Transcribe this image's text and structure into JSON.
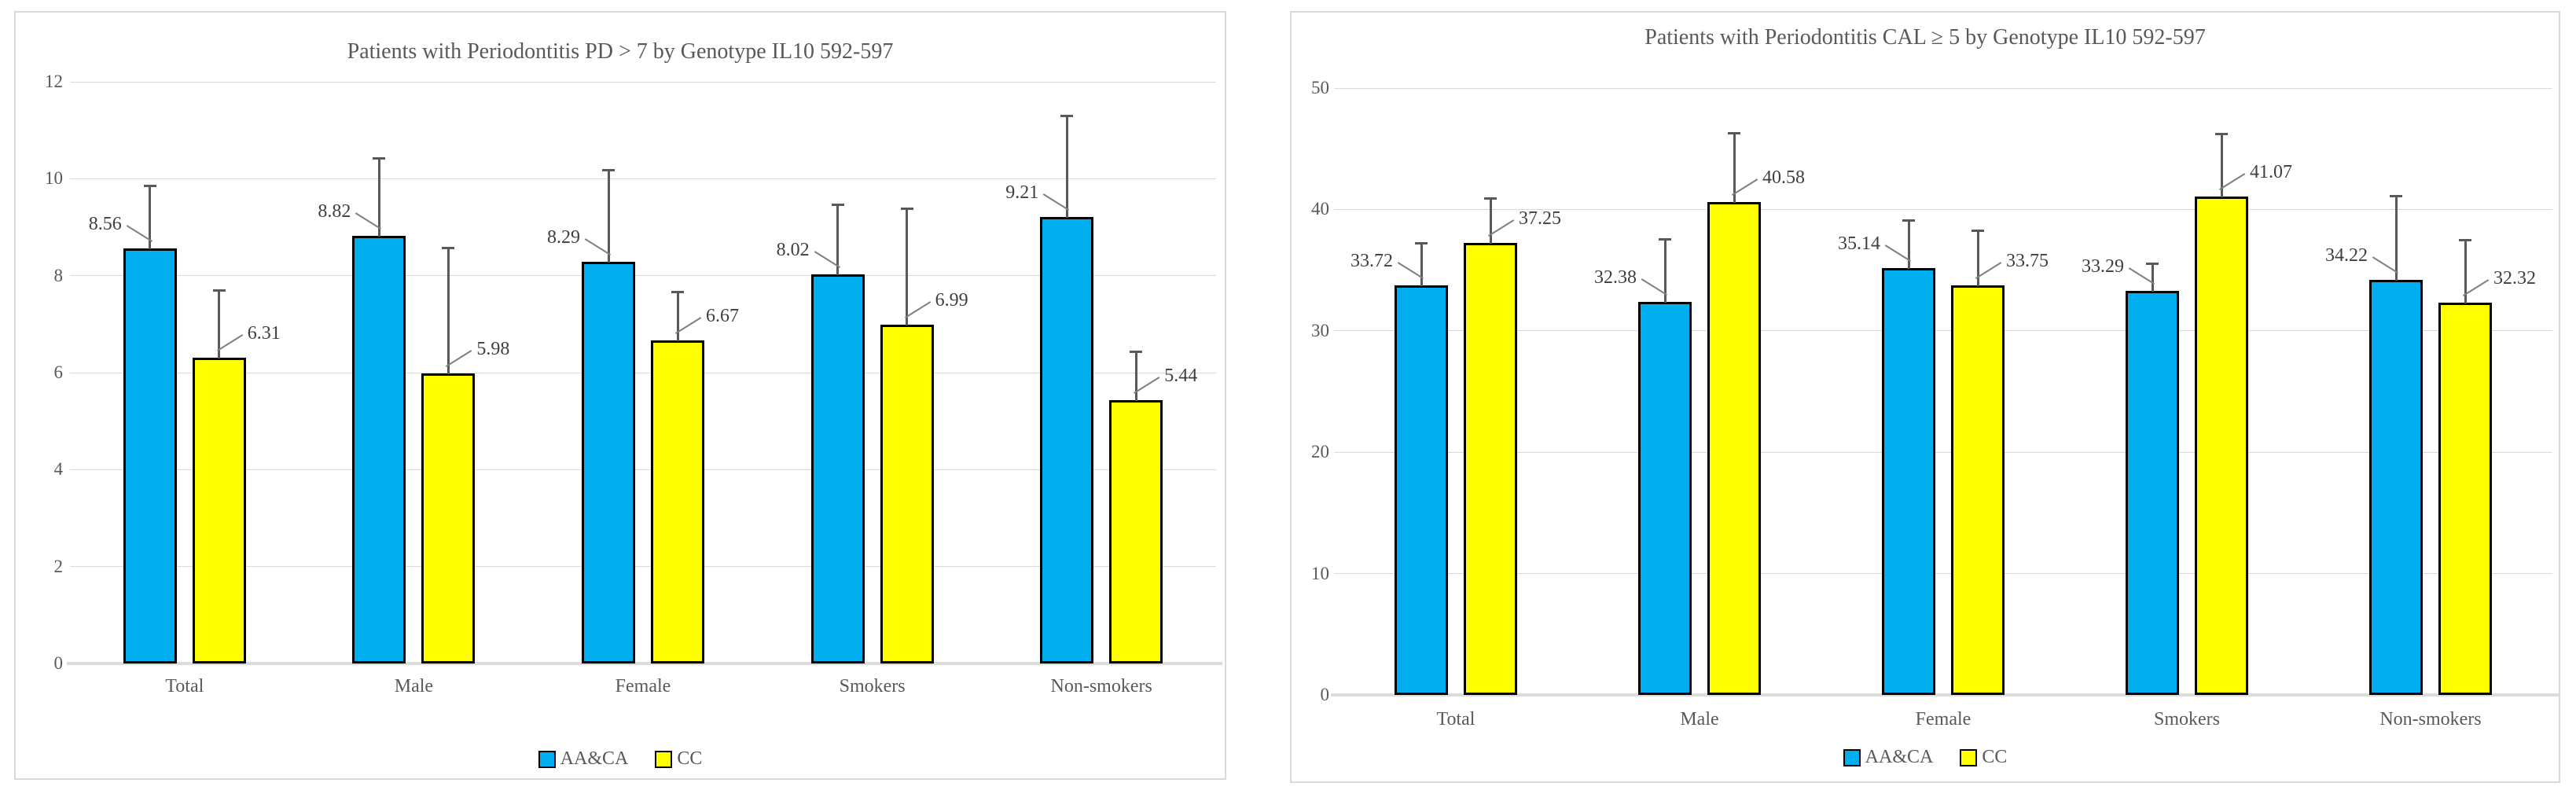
{
  "colors": {
    "series_aa_ca": "#00AEEF",
    "series_cc": "#FFFF00",
    "bar_border": "#000000",
    "gridline": "#D9D9D9",
    "axis_line": "#DCDCDC",
    "error_bar": "#595959",
    "tick_text": "#595959",
    "value_label_text": "#3F3F3F",
    "panel_border": "#D9D9D9"
  },
  "chart_data": [
    {
      "type": "bar",
      "title": "Patients with Periodontitis PD > 7 by Genotype IL10 592-597",
      "categories": [
        "Total",
        "Male",
        "Female",
        "Smokers",
        "Non-smokers"
      ],
      "series": [
        {
          "name": "AA&CA",
          "color": "#00AEEF",
          "values": [
            8.56,
            8.82,
            8.29,
            8.02,
            9.21
          ],
          "errors_up": [
            1.3,
            1.6,
            1.9,
            1.45,
            2.1
          ]
        },
        {
          "name": "CC",
          "color": "#FFFF00",
          "values": [
            6.31,
            5.98,
            6.67,
            6.99,
            5.44
          ],
          "errors_up": [
            1.4,
            2.6,
            1.0,
            2.4,
            1.0
          ]
        }
      ],
      "value_labels": [
        [
          "8.56",
          "8.82",
          "8.29",
          "8.02",
          "9.21"
        ],
        [
          "6.31",
          "5.98",
          "6.67",
          "6.99",
          "5.44"
        ]
      ],
      "ylim": [
        0,
        12
      ],
      "yticks": [
        0,
        2,
        4,
        6,
        8,
        10,
        12
      ],
      "grid": true,
      "legend_position": "bottom"
    },
    {
      "type": "bar",
      "title": "Patients with Periodontitis CAL ≥ 5 by Genotype IL10 592-597",
      "categories": [
        "Total",
        "Male",
        "Female",
        "Smokers",
        "Non-smokers"
      ],
      "series": [
        {
          "name": "AA&CA",
          "color": "#00AEEF",
          "values": [
            33.72,
            32.38,
            35.14,
            33.29,
            34.22
          ],
          "errors_up": [
            3.5,
            5.2,
            4.0,
            2.3,
            6.9
          ]
        },
        {
          "name": "CC",
          "color": "#FFFF00",
          "values": [
            37.25,
            40.58,
            33.75,
            41.07,
            32.32
          ],
          "errors_up": [
            3.7,
            5.7,
            4.5,
            5.2,
            5.2
          ]
        }
      ],
      "value_labels": [
        [
          "33.72",
          "32.38",
          "35.14",
          "33.29",
          "34.22"
        ],
        [
          "37.25",
          "40.58",
          "33.75",
          "41.07",
          "32.32"
        ]
      ],
      "ylim": [
        0,
        50
      ],
      "yticks": [
        0,
        10,
        20,
        30,
        40,
        50
      ],
      "grid": true,
      "legend_position": "bottom"
    }
  ]
}
